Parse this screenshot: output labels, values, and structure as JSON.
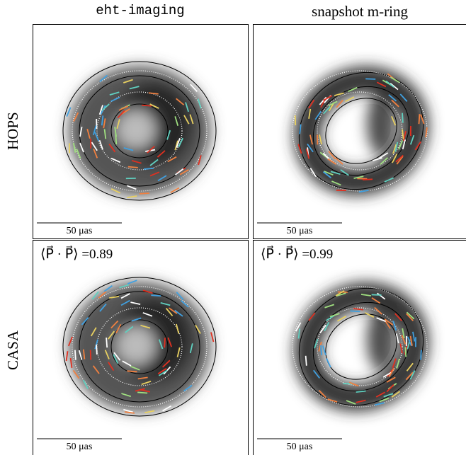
{
  "column_titles": [
    "eht-imaging",
    "snapshot m-ring"
  ],
  "row_labels": [
    "HOPS",
    "CASA"
  ],
  "panels": [
    {
      "scale_bar": "50 μas"
    },
    {
      "scale_bar": "50 μas"
    },
    {
      "scale_bar": "50 μas",
      "annotation": "⟨P⃗ · P⃗⟩ =0.89"
    },
    {
      "scale_bar": "50 μas",
      "annotation": "⟨P⃗ · P⃗⟩ =0.99"
    }
  ]
}
